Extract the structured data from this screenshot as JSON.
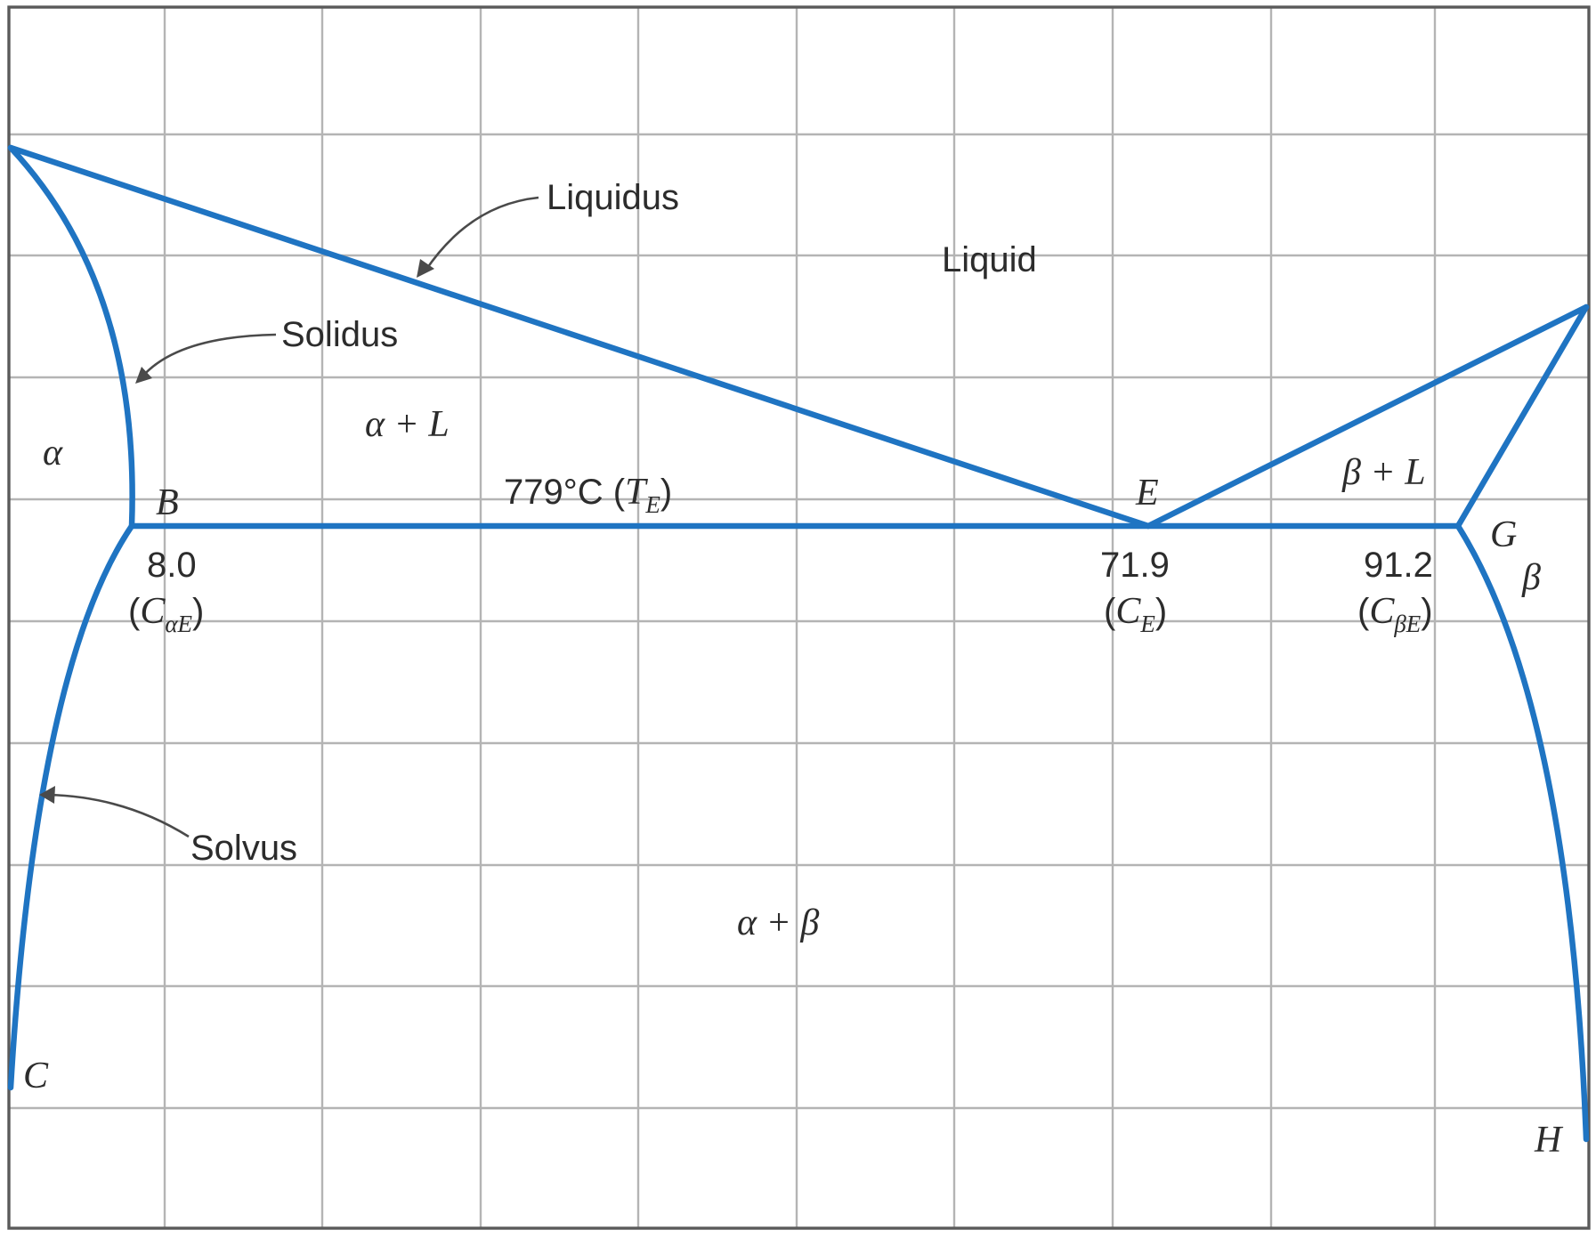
{
  "diagram": {
    "curves": {
      "liquidus_label": "Liquidus",
      "solidus_label": "Solidus",
      "solvus_label": "Solvus"
    },
    "regions": {
      "liquid": "Liquid",
      "alpha": "α",
      "alpha_plus_liquid": "α + L",
      "beta_plus_liquid": "β + L",
      "beta": "β",
      "alpha_plus_beta": "α + β"
    },
    "points": {
      "B": "B",
      "E": "E",
      "G": "G",
      "C": "C",
      "H": "H"
    },
    "eutectic_temperature": {
      "value": "779°C (",
      "symbol": "T",
      "subscript": "E",
      "close": ")"
    },
    "compositions": {
      "alpha_E": {
        "value": "8.0",
        "open": "(",
        "symbol": "C",
        "subscript": "αE",
        "close": ")"
      },
      "E": {
        "value": "71.9",
        "open": "(",
        "symbol": "C",
        "subscript": "E",
        "close": ")"
      },
      "beta_E": {
        "value": "91.2",
        "open": "(",
        "symbol": "C",
        "subscript": "βE",
        "close": ")"
      }
    },
    "colors": {
      "phase_boundary": "#1f74c2",
      "grid": "#b4b4b4",
      "text": "#2c2c2c"
    }
  }
}
